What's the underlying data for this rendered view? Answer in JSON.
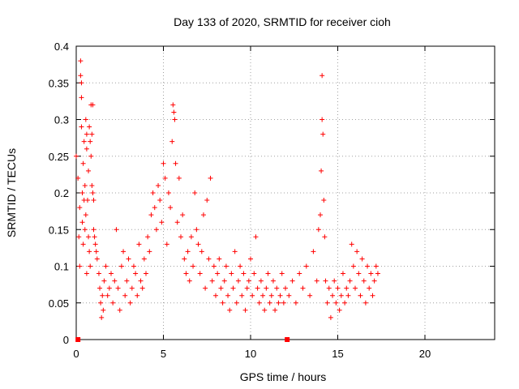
{
  "chart_data": {
    "type": "scatter",
    "title": "Day 133 of 2020, SRMTID for receiver cioh",
    "xlabel": "GPS time / hours",
    "ylabel": "SRMTID / TECUs",
    "xlim": [
      0,
      24
    ],
    "ylim": [
      0,
      0.4
    ],
    "x_ticks": [
      0,
      5,
      10,
      15,
      20
    ],
    "y_ticks": [
      0,
      0.05,
      0.1,
      0.15,
      0.2,
      0.25,
      0.3,
      0.35,
      0.4
    ],
    "y_tick_labels": [
      "0",
      "0.05",
      "0.1",
      "0.15",
      "0.2",
      "0.25",
      "0.3",
      "0.35",
      "0.4"
    ],
    "grid": true,
    "marker": "+",
    "color": "#ff0000",
    "series": [
      {
        "name": "SRMTID",
        "points": [
          [
            0.0,
            0.25
          ],
          [
            0.1,
            0.22
          ],
          [
            0.15,
            0.14
          ],
          [
            0.2,
            0.1
          ],
          [
            0.2,
            0.18
          ],
          [
            0.25,
            0.38
          ],
          [
            0.25,
            0.36
          ],
          [
            0.3,
            0.35
          ],
          [
            0.3,
            0.33
          ],
          [
            0.3,
            0.29
          ],
          [
            0.35,
            0.2
          ],
          [
            0.35,
            0.16
          ],
          [
            0.4,
            0.24
          ],
          [
            0.4,
            0.13
          ],
          [
            0.45,
            0.27
          ],
          [
            0.45,
            0.19
          ],
          [
            0.5,
            0.21
          ],
          [
            0.5,
            0.15
          ],
          [
            0.55,
            0.3
          ],
          [
            0.55,
            0.17
          ],
          [
            0.6,
            0.28
          ],
          [
            0.6,
            0.26
          ],
          [
            0.6,
            0.09
          ],
          [
            0.65,
            0.19
          ],
          [
            0.7,
            0.23
          ],
          [
            0.7,
            0.14
          ],
          [
            0.75,
            0.29
          ],
          [
            0.75,
            0.12
          ],
          [
            0.8,
            0.27
          ],
          [
            0.8,
            0.1
          ],
          [
            0.85,
            0.25
          ],
          [
            0.85,
            0.32
          ],
          [
            0.9,
            0.28
          ],
          [
            0.9,
            0.21
          ],
          [
            0.95,
            0.32
          ],
          [
            0.95,
            0.2
          ],
          [
            1.0,
            0.19
          ],
          [
            1.0,
            0.15
          ],
          [
            1.05,
            0.14
          ],
          [
            1.1,
            0.13
          ],
          [
            1.15,
            0.12
          ],
          [
            1.2,
            0.11
          ],
          [
            1.3,
            0.09
          ],
          [
            1.35,
            0.07
          ],
          [
            1.4,
            0.05
          ],
          [
            1.45,
            0.03
          ],
          [
            1.5,
            0.06
          ],
          [
            1.55,
            0.04
          ],
          [
            1.6,
            0.08
          ],
          [
            1.7,
            0.1
          ],
          [
            1.8,
            0.06
          ],
          [
            1.9,
            0.07
          ],
          [
            2.0,
            0.09
          ],
          [
            2.1,
            0.05
          ],
          [
            2.2,
            0.08
          ],
          [
            2.3,
            0.15
          ],
          [
            2.4,
            0.07
          ],
          [
            2.5,
            0.04
          ],
          [
            2.6,
            0.1
          ],
          [
            2.7,
            0.12
          ],
          [
            2.8,
            0.06
          ],
          [
            2.9,
            0.08
          ],
          [
            3.0,
            0.11
          ],
          [
            3.1,
            0.05
          ],
          [
            3.2,
            0.07
          ],
          [
            3.3,
            0.1
          ],
          [
            3.4,
            0.09
          ],
          [
            3.5,
            0.06
          ],
          [
            3.6,
            0.13
          ],
          [
            3.7,
            0.08
          ],
          [
            3.8,
            0.07
          ],
          [
            3.9,
            0.11
          ],
          [
            4.0,
            0.09
          ],
          [
            4.1,
            0.14
          ],
          [
            4.2,
            0.12
          ],
          [
            4.3,
            0.17
          ],
          [
            4.4,
            0.2
          ],
          [
            4.5,
            0.18
          ],
          [
            4.6,
            0.15
          ],
          [
            4.7,
            0.21
          ],
          [
            4.8,
            0.19
          ],
          [
            4.9,
            0.16
          ],
          [
            5.0,
            0.24
          ],
          [
            5.1,
            0.22
          ],
          [
            5.2,
            0.13
          ],
          [
            5.3,
            0.2
          ],
          [
            5.4,
            0.18
          ],
          [
            5.5,
            0.27
          ],
          [
            5.55,
            0.32
          ],
          [
            5.6,
            0.31
          ],
          [
            5.65,
            0.3
          ],
          [
            5.7,
            0.24
          ],
          [
            5.8,
            0.16
          ],
          [
            5.9,
            0.22
          ],
          [
            6.0,
            0.14
          ],
          [
            6.1,
            0.17
          ],
          [
            6.2,
            0.11
          ],
          [
            6.3,
            0.09
          ],
          [
            6.4,
            0.12
          ],
          [
            6.5,
            0.08
          ],
          [
            6.6,
            0.14
          ],
          [
            6.7,
            0.1
          ],
          [
            6.8,
            0.2
          ],
          [
            6.9,
            0.15
          ],
          [
            7.0,
            0.13
          ],
          [
            7.1,
            0.09
          ],
          [
            7.2,
            0.12
          ],
          [
            7.3,
            0.17
          ],
          [
            7.4,
            0.07
          ],
          [
            7.5,
            0.19
          ],
          [
            7.6,
            0.11
          ],
          [
            7.7,
            0.22
          ],
          [
            7.8,
            0.08
          ],
          [
            7.9,
            0.1
          ],
          [
            8.0,
            0.06
          ],
          [
            8.1,
            0.09
          ],
          [
            8.2,
            0.11
          ],
          [
            8.3,
            0.07
          ],
          [
            8.4,
            0.05
          ],
          [
            8.5,
            0.08
          ],
          [
            8.6,
            0.1
          ],
          [
            8.7,
            0.06
          ],
          [
            8.8,
            0.04
          ],
          [
            8.9,
            0.09
          ],
          [
            9.0,
            0.07
          ],
          [
            9.1,
            0.12
          ],
          [
            9.2,
            0.05
          ],
          [
            9.3,
            0.08
          ],
          [
            9.4,
            0.1
          ],
          [
            9.5,
            0.06
          ],
          [
            9.6,
            0.09
          ],
          [
            9.7,
            0.04
          ],
          [
            9.8,
            0.07
          ],
          [
            9.9,
            0.08
          ],
          [
            10.0,
            0.11
          ],
          [
            10.1,
            0.06
          ],
          [
            10.2,
            0.09
          ],
          [
            10.3,
            0.14
          ],
          [
            10.4,
            0.07
          ],
          [
            10.5,
            0.05
          ],
          [
            10.6,
            0.08
          ],
          [
            10.7,
            0.06
          ],
          [
            10.8,
            0.04
          ],
          [
            10.9,
            0.07
          ],
          [
            11.0,
            0.09
          ],
          [
            11.1,
            0.05
          ],
          [
            11.2,
            0.06
          ],
          [
            11.3,
            0.08
          ],
          [
            11.4,
            0.04
          ],
          [
            11.5,
            0.07
          ],
          [
            11.6,
            0.05
          ],
          [
            11.7,
            0.06
          ],
          [
            11.8,
            0.09
          ],
          [
            11.9,
            0.05
          ],
          [
            12.0,
            0.07
          ],
          [
            12.2,
            0.06
          ],
          [
            12.4,
            0.08
          ],
          [
            12.6,
            0.05
          ],
          [
            12.8,
            0.09
          ],
          [
            13.0,
            0.07
          ],
          [
            13.2,
            0.1
          ],
          [
            13.4,
            0.06
          ],
          [
            13.6,
            0.12
          ],
          [
            13.8,
            0.08
          ],
          [
            13.9,
            0.15
          ],
          [
            14.0,
            0.17
          ],
          [
            14.05,
            0.23
          ],
          [
            14.1,
            0.36
          ],
          [
            14.1,
            0.3
          ],
          [
            14.15,
            0.28
          ],
          [
            14.2,
            0.19
          ],
          [
            14.25,
            0.14
          ],
          [
            14.3,
            0.08
          ],
          [
            14.4,
            0.05
          ],
          [
            14.5,
            0.07
          ],
          [
            14.6,
            0.03
          ],
          [
            14.7,
            0.06
          ],
          [
            14.8,
            0.08
          ],
          [
            14.9,
            0.05
          ],
          [
            15.0,
            0.07
          ],
          [
            15.1,
            0.04
          ],
          [
            15.2,
            0.06
          ],
          [
            15.3,
            0.09
          ],
          [
            15.4,
            0.05
          ],
          [
            15.5,
            0.07
          ],
          [
            15.6,
            0.06
          ],
          [
            15.7,
            0.08
          ],
          [
            15.8,
            0.13
          ],
          [
            15.9,
            0.1
          ],
          [
            16.0,
            0.07
          ],
          [
            16.1,
            0.12
          ],
          [
            16.2,
            0.09
          ],
          [
            16.3,
            0.06
          ],
          [
            16.4,
            0.11
          ],
          [
            16.5,
            0.08
          ],
          [
            16.6,
            0.05
          ],
          [
            16.7,
            0.1
          ],
          [
            16.8,
            0.07
          ],
          [
            16.9,
            0.09
          ],
          [
            17.0,
            0.06
          ],
          [
            17.1,
            0.08
          ],
          [
            17.2,
            0.1
          ],
          [
            17.3,
            0.09
          ]
        ]
      }
    ],
    "baseline_markers": [
      0.1,
      12.1
    ]
  }
}
